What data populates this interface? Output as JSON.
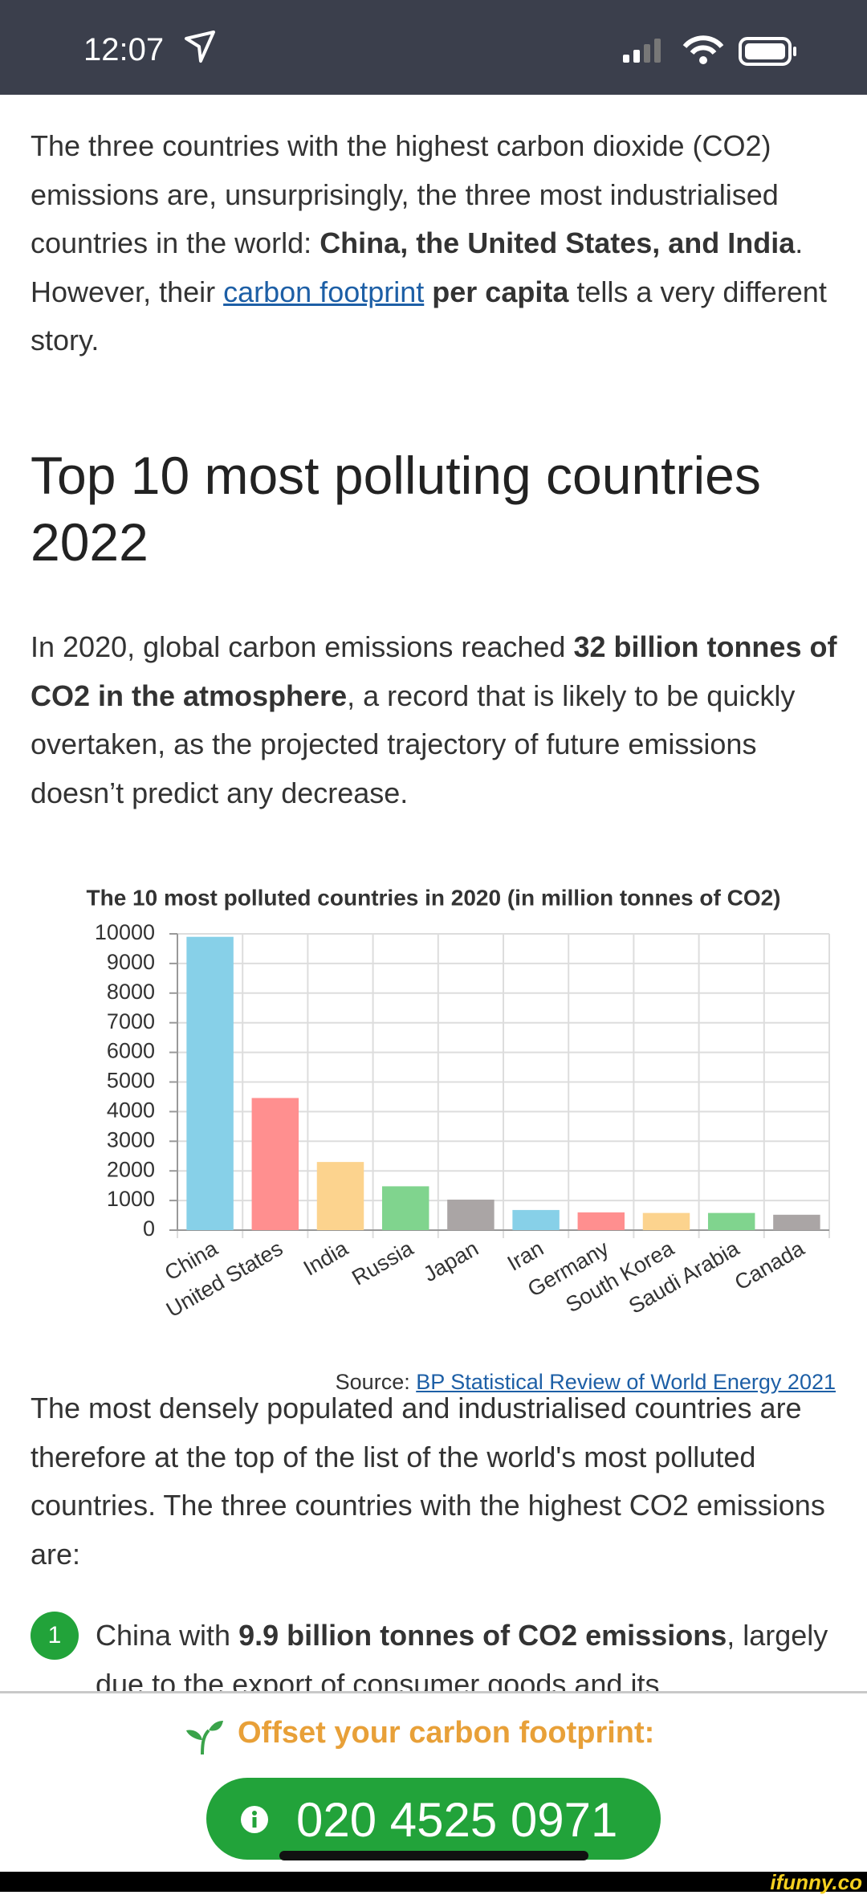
{
  "status_bar": {
    "time": "12:07"
  },
  "intro": [
    "The three countries with the highest carbon dioxide (CO2) emissions are, unsurprisingly, the three most industrialised countries in the world: ",
    "China, the United States, and India",
    ". However, their ",
    "carbon footprint",
    " per capita",
    " tells a very different story."
  ],
  "heading": "Top 10 most polluting countries 2022",
  "paragraph2": [
    "In 2020, global carbon emissions reached ",
    "32 billion tonnes of CO2 in the atmosphere",
    ", a record that is likely to be quickly overtaken, as the projected trajectory of future emissions doesn’t predict any decrease."
  ],
  "chart_data": {
    "type": "bar",
    "title": "The 10 most polluted countries in 2020 (in million tonnes of CO2)",
    "categories": [
      "China",
      "United States",
      "India",
      "Russia",
      "Japan",
      "Iran",
      "Germany",
      "South Korea",
      "Saudi Arabia",
      "Canada"
    ],
    "values": [
      9900,
      4460,
      2300,
      1480,
      1030,
      680,
      600,
      580,
      580,
      520
    ],
    "colors": [
      "#87d0e8",
      "#ff8f8f",
      "#fcd38e",
      "#80d48e",
      "#aaa5a5",
      "#87d0e8",
      "#ff8f8f",
      "#fcd38e",
      "#80d48e",
      "#aaa5a5"
    ],
    "ylim": [
      0,
      10000
    ],
    "yticks": [
      0,
      1000,
      2000,
      3000,
      4000,
      5000,
      6000,
      7000,
      8000,
      9000,
      10000
    ],
    "grid": true
  },
  "source": {
    "label": "Source:",
    "link": "BP Statistical Review of World Energy 2021"
  },
  "paragraph3": "The most densely populated and industrialised countries are therefore at the top of the list of the world's most polluted countries. The three countries with the highest CO2 emissions are:",
  "list": [
    {
      "number": "1",
      "text": [
        "China with ",
        "9.9 billion tonnes of CO2 emissions",
        ", largely due to the export of consumer goods and its"
      ]
    }
  ],
  "footer": {
    "offer": "Offset your carbon footprint:",
    "phone": "020 4525 0971"
  },
  "watermark": "ifunny.co"
}
